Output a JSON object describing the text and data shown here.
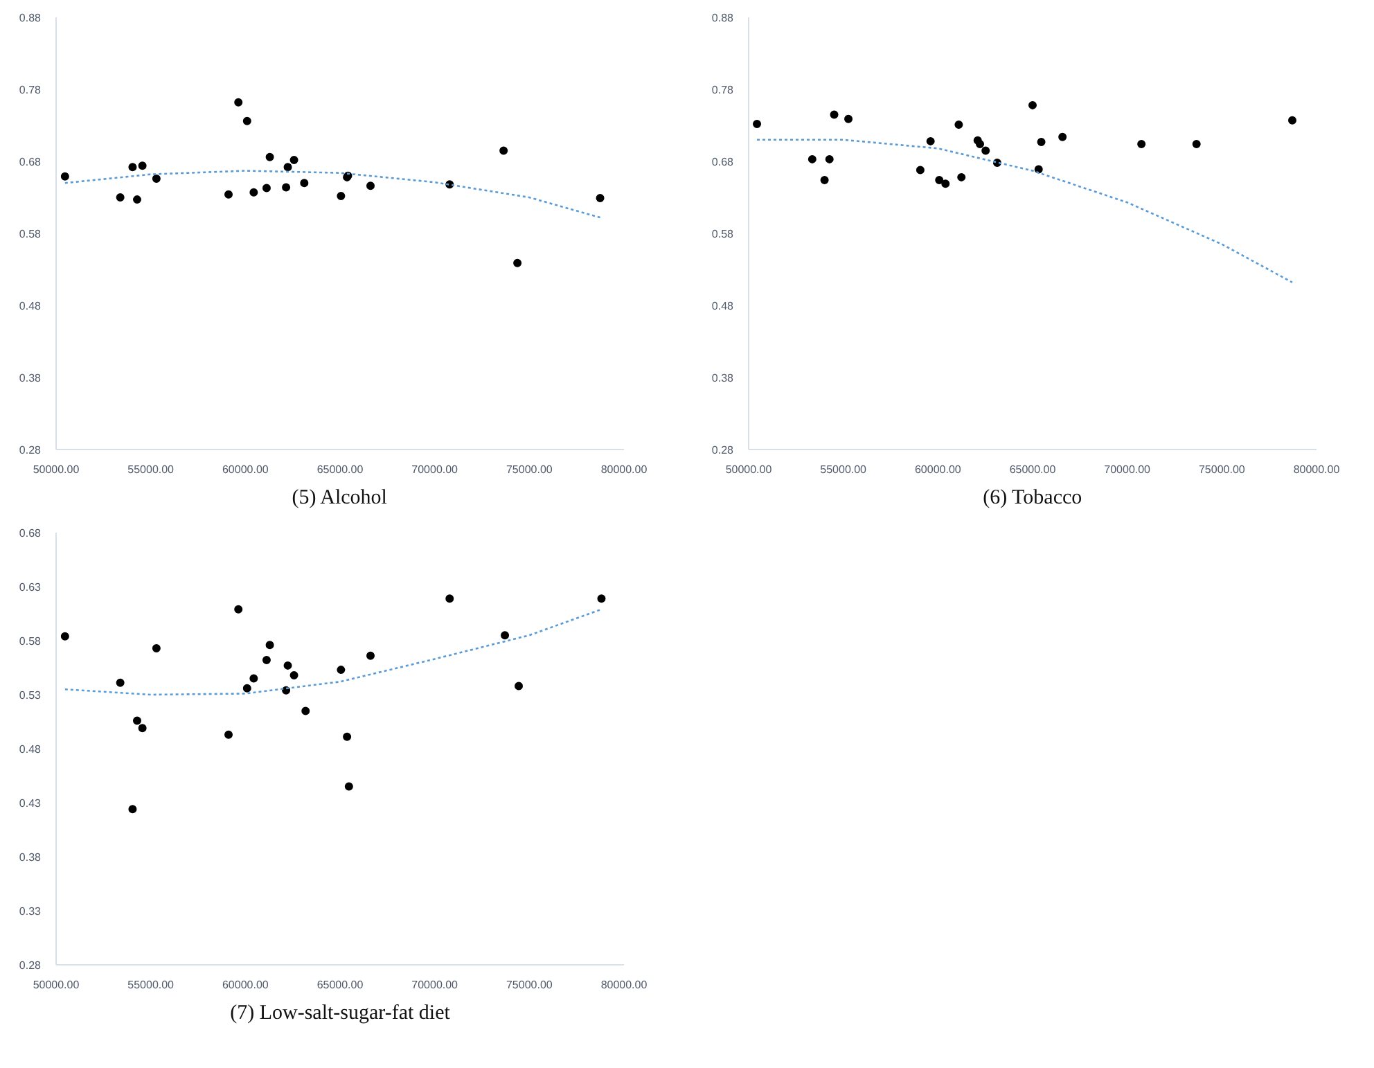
{
  "chart_data": [
    {
      "type": "scatter",
      "title": "(5) Alcohol",
      "xlim": [
        50000,
        80000
      ],
      "ylim": [
        0.28,
        0.88
      ],
      "xticks": [
        {
          "value": 50000,
          "label": "50000.00"
        },
        {
          "value": 55000,
          "label": "55000.00"
        },
        {
          "value": 60000,
          "label": "60000.00"
        },
        {
          "value": 65000,
          "label": "65000.00"
        },
        {
          "value": 70000,
          "label": "70000.00"
        },
        {
          "value": 75000,
          "label": "75000.00"
        },
        {
          "value": 80000,
          "label": "80000.00"
        }
      ],
      "yticks": [
        0.28,
        0.38,
        0.48,
        0.58,
        0.68,
        0.78,
        0.88
      ],
      "grid": false,
      "series": [
        {
          "marker": "circle",
          "color": "#000000",
          "x": [
            50470,
            53390,
            54040,
            54280,
            54560,
            55300,
            59110,
            59630,
            60090,
            60440,
            61120,
            61290,
            62150,
            62240,
            62570,
            63110,
            65050,
            65370,
            65420,
            66610,
            70790,
            73640,
            74370,
            78740
          ],
          "values": [
            0.659,
            0.63,
            0.672,
            0.627,
            0.674,
            0.656,
            0.634,
            0.762,
            0.736,
            0.637,
            0.643,
            0.686,
            0.644,
            0.672,
            0.682,
            0.65,
            0.632,
            0.658,
            0.66,
            0.646,
            0.648,
            0.695,
            0.539,
            0.629
          ]
        },
        {
          "type": "line",
          "line_style": "dotted",
          "color": "#5b9bd5",
          "x": [
            50470,
            55000,
            60000,
            65000,
            70000,
            75000,
            78740
          ],
          "values": [
            0.65,
            0.662,
            0.667,
            0.664,
            0.651,
            0.63,
            0.602
          ]
        }
      ]
    },
    {
      "type": "scatter",
      "title": "(6) Tobacco",
      "xlim": [
        50000,
        80000
      ],
      "ylim": [
        0.28,
        0.88
      ],
      "xticks": [
        {
          "value": 50000,
          "label": "50000.00"
        },
        {
          "value": 55000,
          "label": "55000.00"
        },
        {
          "value": 60000,
          "label": "60000.00"
        },
        {
          "value": 65000,
          "label": "65000.00"
        },
        {
          "value": 70000,
          "label": "70000.00"
        },
        {
          "value": 75000,
          "label": "75000.00"
        },
        {
          "value": 80000,
          "label": "80000.00"
        }
      ],
      "yticks": [
        0.28,
        0.38,
        0.48,
        0.58,
        0.68,
        0.78,
        0.88
      ],
      "grid": false,
      "series": [
        {
          "marker": "circle",
          "color": "#000000",
          "x": [
            50440,
            53360,
            54010,
            54270,
            54520,
            55270,
            59070,
            59610,
            60070,
            60400,
            61100,
            61240,
            62100,
            62220,
            62520,
            63130,
            65000,
            65320,
            65460,
            66580,
            70750,
            73660,
            78720
          ],
          "values": [
            0.732,
            0.683,
            0.654,
            0.683,
            0.745,
            0.739,
            0.668,
            0.708,
            0.654,
            0.649,
            0.731,
            0.658,
            0.709,
            0.704,
            0.695,
            0.678,
            0.758,
            0.669,
            0.707,
            0.714,
            0.704,
            0.704,
            0.737
          ]
        },
        {
          "type": "line",
          "line_style": "dotted",
          "color": "#5b9bd5",
          "x": [
            50440,
            55000,
            60000,
            65000,
            70000,
            75000,
            78720
          ],
          "values": [
            0.71,
            0.71,
            0.698,
            0.667,
            0.623,
            0.565,
            0.512
          ]
        }
      ]
    },
    {
      "type": "scatter",
      "title": "(7) Low-salt-sugar-fat diet",
      "xlim": [
        50000,
        80000
      ],
      "ylim": [
        0.28,
        0.68
      ],
      "xticks": [
        {
          "value": 50000,
          "label": "50000.00"
        },
        {
          "value": 55000,
          "label": "55000.00"
        },
        {
          "value": 60000,
          "label": "60000.00"
        },
        {
          "value": 65000,
          "label": "65000.00"
        },
        {
          "value": 70000,
          "label": "70000.00"
        },
        {
          "value": 75000,
          "label": "75000.00"
        },
        {
          "value": 80000,
          "label": "80000.00"
        }
      ],
      "yticks": [
        0.28,
        0.33,
        0.38,
        0.43,
        0.48,
        0.53,
        0.58,
        0.63,
        0.68
      ],
      "grid": false,
      "series": [
        {
          "marker": "circle",
          "color": "#000000",
          "x": [
            50470,
            53390,
            54040,
            54280,
            54560,
            55300,
            59110,
            59630,
            60090,
            60440,
            61120,
            61290,
            62150,
            62240,
            62570,
            63180,
            65050,
            65370,
            65470,
            66610,
            70790,
            73710,
            74440,
            78810
          ],
          "values": [
            0.584,
            0.541,
            0.424,
            0.506,
            0.499,
            0.573,
            0.493,
            0.609,
            0.536,
            0.545,
            0.562,
            0.576,
            0.534,
            0.557,
            0.548,
            0.515,
            0.553,
            0.491,
            0.445,
            0.566,
            0.619,
            0.585,
            0.538,
            0.619
          ]
        },
        {
          "type": "line",
          "line_style": "dotted",
          "color": "#5b9bd5",
          "x": [
            50470,
            55000,
            60000,
            65000,
            70000,
            75000,
            78810
          ],
          "values": [
            0.535,
            0.53,
            0.531,
            0.542,
            0.563,
            0.585,
            0.609
          ]
        }
      ]
    }
  ]
}
